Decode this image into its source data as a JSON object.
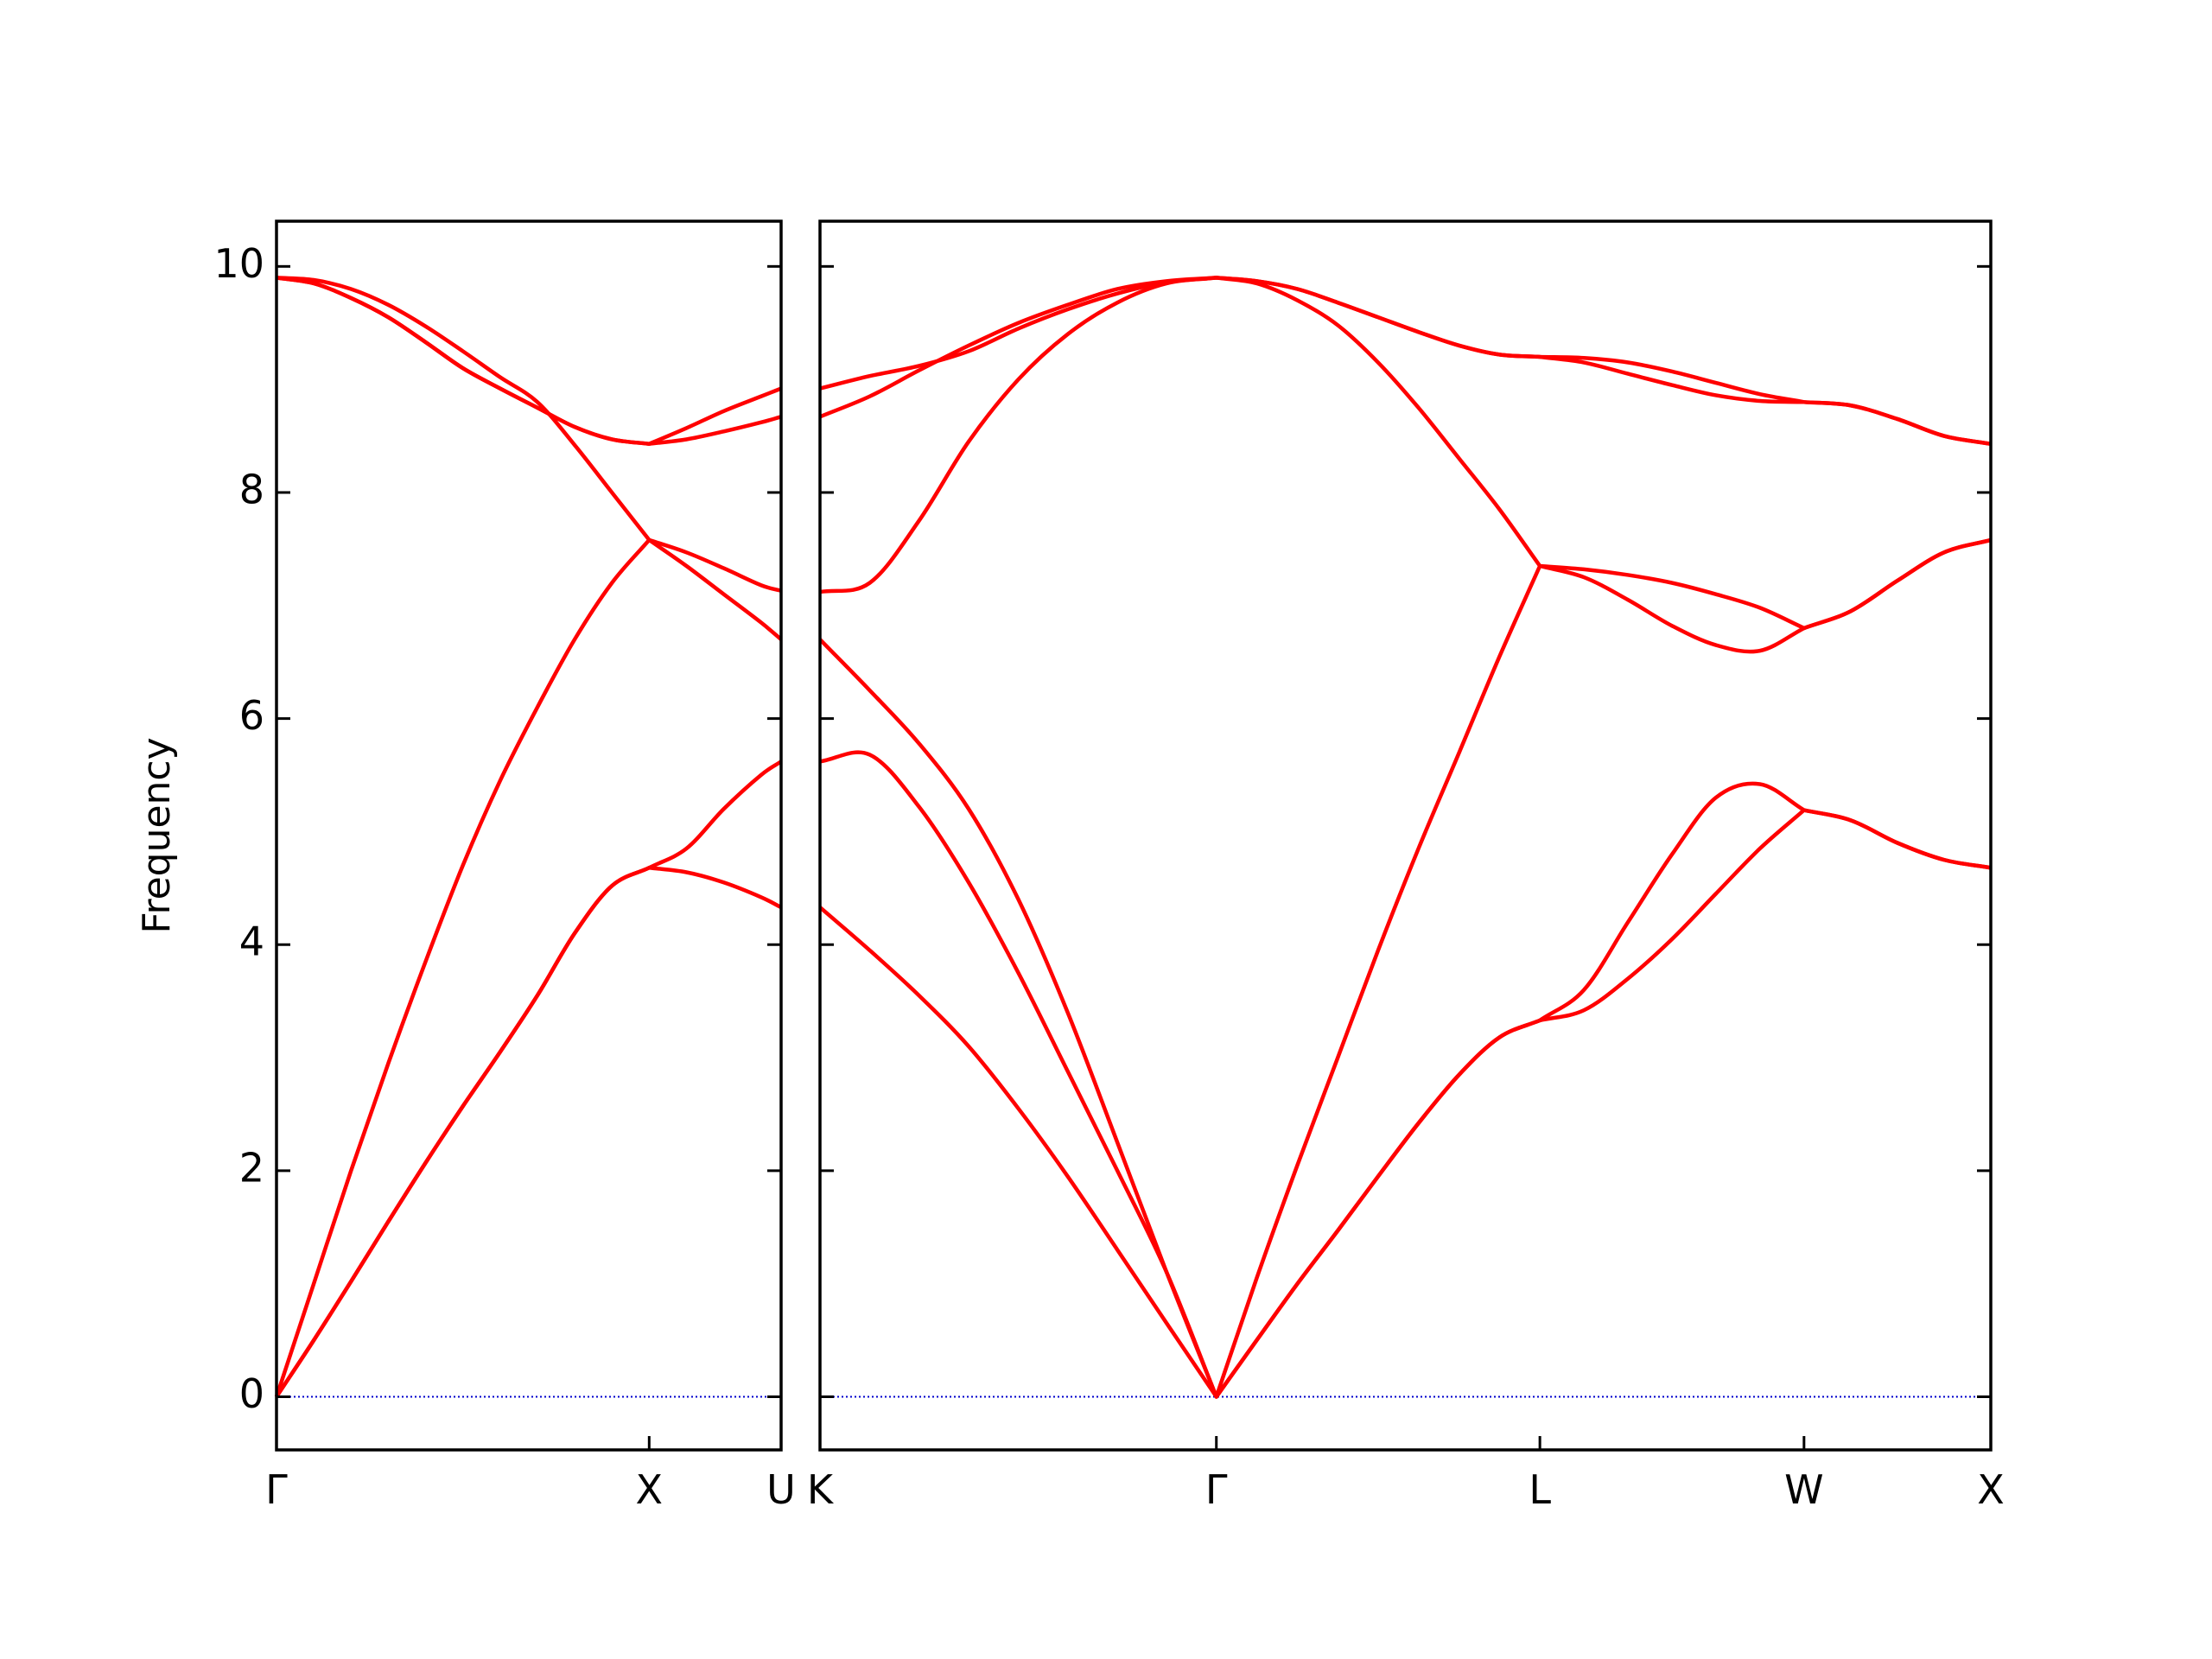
{
  "chart_data": [
    {
      "type": "line",
      "ylabel": "Frequency",
      "x": [
        0,
        0.1,
        0.2,
        0.3,
        0.4,
        0.5,
        0.6,
        0.7,
        0.8,
        0.9,
        1.0,
        1.1,
        1.2,
        1.3,
        1.354
      ],
      "xlim": [
        0,
        1.354
      ],
      "xticks": [
        {
          "value": 0,
          "label": "Γ"
        },
        {
          "value": 1,
          "label": "X"
        },
        {
          "value": 1.354,
          "label": "U"
        }
      ],
      "ylim": [
        -0.47,
        10.4
      ],
      "yticks": [
        0,
        2,
        4,
        6,
        8,
        10
      ],
      "ytick_labels": true,
      "hlines": [
        0
      ],
      "hline_color": "#0000cc",
      "series": [
        {
          "color": "#ff0000",
          "values": [
            0,
            0.5,
            1.02,
            1.55,
            2.07,
            2.57,
            3.05,
            3.55,
            4.1,
            4.52,
            4.68,
            4.64,
            4.55,
            4.42,
            4.33
          ]
        },
        {
          "color": "#ff0000",
          "values": [
            0,
            0.5,
            1.02,
            1.55,
            2.07,
            2.57,
            3.05,
            3.55,
            4.1,
            4.52,
            4.68,
            4.85,
            5.2,
            5.5,
            5.62
          ]
        },
        {
          "color": "#ff0000",
          "values": [
            0,
            1.0,
            2.0,
            2.95,
            3.85,
            4.7,
            5.45,
            6.1,
            6.7,
            7.2,
            7.58,
            7.35,
            7.1,
            6.85,
            6.7
          ]
        },
        {
          "color": "#ff0000",
          "values": [
            9.9,
            9.88,
            9.8,
            9.66,
            9.47,
            9.25,
            9.02,
            8.8,
            8.42,
            8.0,
            7.58,
            7.47,
            7.33,
            7.18,
            7.13
          ]
        },
        {
          "color": "#ff0000",
          "values": [
            9.9,
            9.85,
            9.72,
            9.55,
            9.33,
            9.1,
            8.92,
            8.75,
            8.58,
            8.47,
            8.43,
            8.47,
            8.54,
            8.62,
            8.67
          ]
        },
        {
          "color": "#ff0000",
          "values": [
            9.9,
            9.85,
            9.72,
            9.55,
            9.33,
            9.1,
            8.92,
            8.75,
            8.58,
            8.47,
            8.43,
            8.57,
            8.72,
            8.85,
            8.92
          ]
        }
      ]
    },
    {
      "type": "line",
      "x": [
        1.354,
        1.487,
        1.619,
        1.752,
        1.885,
        2.017,
        2.15,
        2.282,
        2.415,
        2.523,
        2.632,
        2.74,
        2.848,
        2.956,
        3.065,
        3.173,
        3.281,
        3.399,
        3.517,
        3.635,
        3.752,
        3.87,
        3.988,
        4.113,
        4.238,
        4.363,
        4.488
      ],
      "xlim": [
        1.354,
        4.488
      ],
      "xticks": [
        {
          "value": 1.354,
          "label": "K"
        },
        {
          "value": 2.415,
          "label": "Γ"
        },
        {
          "value": 3.281,
          "label": "L"
        },
        {
          "value": 3.988,
          "label": "W"
        },
        {
          "value": 4.488,
          "label": "X"
        }
      ],
      "ylim": [
        -0.47,
        10.4
      ],
      "yticks": [
        0,
        2,
        4,
        6,
        8,
        10
      ],
      "ytick_labels": false,
      "hlines": [
        0
      ],
      "hline_color": "#0000cc",
      "series": [
        {
          "color": "#ff0000",
          "values": [
            4.33,
            3.95,
            3.55,
            3.1,
            2.55,
            1.95,
            1.3,
            0.65,
            0,
            0.5,
            1.0,
            1.47,
            1.95,
            2.42,
            2.85,
            3.18,
            3.33,
            3.42,
            3.7,
            4.05,
            4.45,
            4.85,
            5.19,
            5.1,
            4.9,
            4.75,
            4.68
          ]
        },
        {
          "color": "#ff0000",
          "values": [
            5.62,
            5.68,
            5.22,
            4.55,
            3.75,
            2.88,
            2.0,
            1.1,
            0,
            0.5,
            1.0,
            1.47,
            1.95,
            2.42,
            2.85,
            3.18,
            3.33,
            3.6,
            4.2,
            4.8,
            5.3,
            5.42,
            5.19,
            5.1,
            4.9,
            4.75,
            4.68
          ]
        },
        {
          "color": "#ff0000",
          "values": [
            6.7,
            6.25,
            5.78,
            5.2,
            4.4,
            3.4,
            2.25,
            1.1,
            0,
            1.05,
            2.05,
            3.0,
            3.95,
            4.85,
            5.7,
            6.55,
            7.35,
            7.25,
            7.05,
            6.82,
            6.65,
            6.6,
            6.8,
            6.95,
            7.22,
            7.47,
            7.58
          ]
        },
        {
          "color": "#ff0000",
          "values": [
            7.12,
            7.2,
            7.75,
            8.45,
            9.0,
            9.4,
            9.68,
            9.85,
            9.9,
            9.85,
            9.7,
            9.48,
            9.15,
            8.75,
            8.3,
            7.85,
            7.35,
            7.32,
            7.27,
            7.2,
            7.1,
            6.98,
            6.8,
            6.95,
            7.22,
            7.47,
            7.58
          ]
        },
        {
          "color": "#ff0000",
          "values": [
            8.67,
            8.85,
            9.08,
            9.3,
            9.5,
            9.66,
            9.8,
            9.87,
            9.9,
            9.87,
            9.8,
            9.68,
            9.55,
            9.42,
            9.3,
            9.22,
            9.2,
            9.15,
            9.05,
            8.95,
            8.86,
            8.81,
            8.8,
            8.77,
            8.65,
            8.5,
            8.43
          ]
        },
        {
          "color": "#ff0000",
          "values": [
            8.92,
            9.03,
            9.12,
            9.25,
            9.45,
            9.62,
            9.76,
            9.86,
            9.9,
            9.87,
            9.8,
            9.68,
            9.55,
            9.42,
            9.3,
            9.22,
            9.2,
            9.19,
            9.15,
            9.07,
            8.97,
            8.87,
            8.8,
            8.77,
            8.65,
            8.5,
            8.43
          ]
        }
      ]
    }
  ]
}
